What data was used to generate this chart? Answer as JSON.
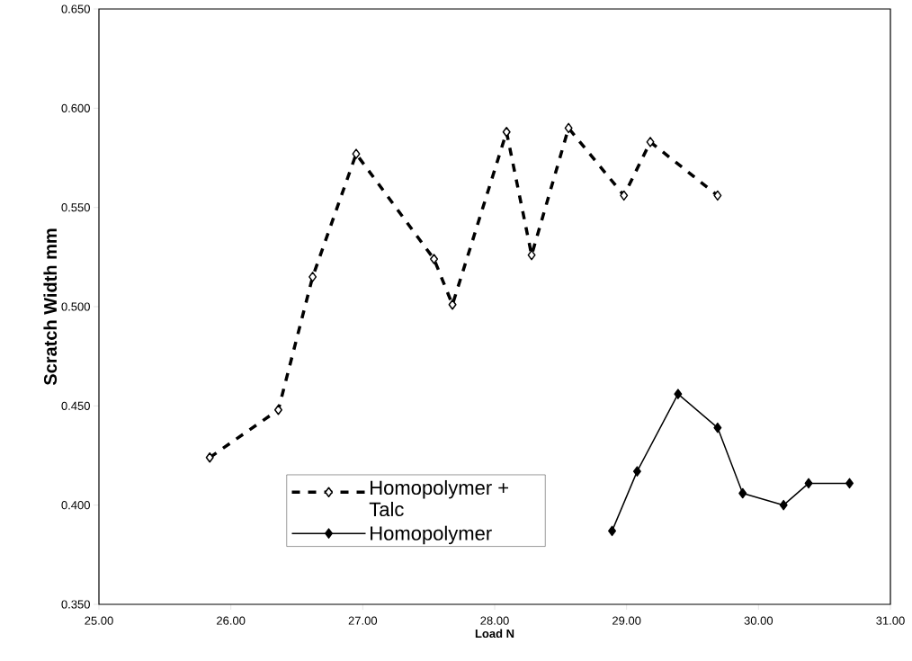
{
  "chart_data": {
    "type": "line",
    "xlabel": "Load N",
    "ylabel": "Scratch Width mm",
    "xlim": [
      25,
      31
    ],
    "ylim": [
      0.35,
      0.65
    ],
    "xticks": [
      {
        "value": 25,
        "label": "25.00"
      },
      {
        "value": 26,
        "label": "26.00"
      },
      {
        "value": 27,
        "label": "27.00"
      },
      {
        "value": 28,
        "label": "28.00"
      },
      {
        "value": 29,
        "label": "29.00"
      },
      {
        "value": 30,
        "label": "30.00"
      },
      {
        "value": 31,
        "label": "31.00"
      }
    ],
    "yticks": [
      {
        "value": 0.35,
        "label": "0.350"
      },
      {
        "value": 0.4,
        "label": "0.400"
      },
      {
        "value": 0.45,
        "label": "0.450"
      },
      {
        "value": 0.5,
        "label": "0.500"
      },
      {
        "value": 0.55,
        "label": "0.550"
      },
      {
        "value": 0.6,
        "label": "0.600"
      },
      {
        "value": 0.65,
        "label": "0.650"
      }
    ],
    "legend": "bottom",
    "marker": "diamond",
    "series": [
      {
        "name": "Homopolymer + Talc",
        "color": "#000000",
        "line_style": "dashed",
        "x": [
          25.84,
          26.36,
          26.62,
          26.95,
          27.54,
          27.68,
          28.09,
          28.28,
          28.56,
          28.98,
          29.18,
          29.69
        ],
        "values": [
          0.424,
          0.448,
          0.515,
          0.577,
          0.524,
          0.501,
          0.588,
          0.526,
          0.59,
          0.556,
          0.583,
          0.556
        ]
      },
      {
        "name": "Homopolymer",
        "color": "#000000",
        "line_style": "solid",
        "x": [
          28.89,
          29.08,
          29.39,
          29.69,
          29.88,
          30.19,
          30.38,
          30.69
        ],
        "values": [
          0.387,
          0.417,
          0.456,
          0.439,
          0.406,
          0.4,
          0.411,
          0.411
        ]
      }
    ]
  }
}
